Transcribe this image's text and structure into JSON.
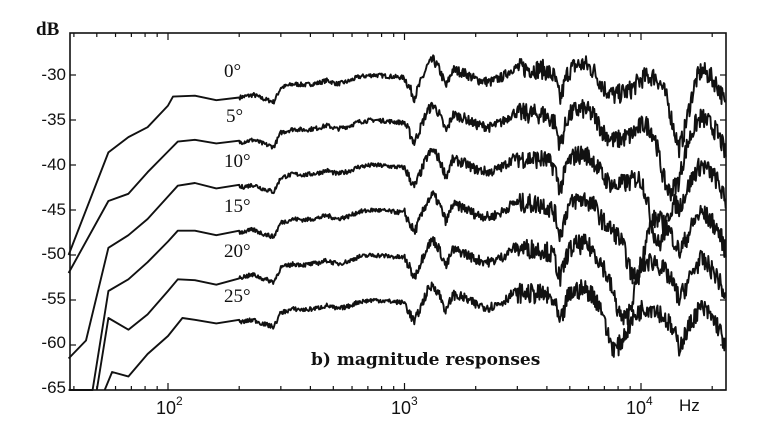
{
  "chart_data": {
    "type": "line",
    "title": "b) magnitude responses",
    "xlabel": "Hz",
    "ylabel": "dB",
    "xscale": "log",
    "xlim": [
      38,
      23000
    ],
    "ylim": [
      -65,
      -25
    ],
    "yticks": [
      -30,
      -35,
      -40,
      -45,
      -50,
      -55,
      -60,
      -65
    ],
    "xticks": [
      {
        "value": 100,
        "label": "10",
        "exp": "2"
      },
      {
        "value": 1000,
        "label": "10",
        "exp": "3"
      },
      {
        "value": 10000,
        "label": "10",
        "exp": "4"
      }
    ],
    "grid": false,
    "legend": "inline labels",
    "series": [
      {
        "name": "0°",
        "offset": 0,
        "low": [
          [
            38,
            -50.0
          ],
          [
            56,
            -38.6
          ],
          [
            68,
            -36.9
          ],
          [
            82,
            -35.8
          ],
          [
            100,
            -33.4
          ],
          [
            105,
            -32.4
          ],
          [
            130,
            -32.3
          ],
          [
            160,
            -32.8
          ],
          [
            200,
            -32.5
          ]
        ]
      },
      {
        "name": "5°",
        "offset": -5,
        "low": [
          [
            38,
            -52.0
          ],
          [
            56,
            -44.0
          ],
          [
            68,
            -43.2
          ],
          [
            82,
            -40.8
          ],
          [
            100,
            -38.5
          ],
          [
            110,
            -37.4
          ],
          [
            130,
            -37.2
          ],
          [
            160,
            -37.6
          ],
          [
            200,
            -37.3
          ]
        ]
      },
      {
        "name": "10°",
        "offset": -10,
        "low": [
          [
            38,
            -61.5
          ],
          [
            45,
            -59.5
          ],
          [
            56,
            -49.2
          ],
          [
            68,
            -47.8
          ],
          [
            82,
            -46.0
          ],
          [
            100,
            -43.5
          ],
          [
            110,
            -42.3
          ],
          [
            130,
            -42.0
          ],
          [
            160,
            -42.6
          ],
          [
            200,
            -42.2
          ]
        ]
      },
      {
        "name": "15°",
        "offset": -15,
        "low": [
          [
            38,
            -65.5
          ],
          [
            48,
            -65.0
          ],
          [
            56,
            -54.0
          ],
          [
            68,
            -52.7
          ],
          [
            82,
            -50.8
          ],
          [
            100,
            -48.5
          ],
          [
            110,
            -47.3
          ],
          [
            130,
            -47.3
          ],
          [
            160,
            -47.8
          ],
          [
            200,
            -47.3
          ]
        ]
      },
      {
        "name": "20°",
        "offset": -20,
        "low": [
          [
            50,
            -65.5
          ],
          [
            56,
            -57.0
          ],
          [
            68,
            -58.3
          ],
          [
            82,
            -56.6
          ],
          [
            100,
            -54.0
          ],
          [
            110,
            -52.7
          ],
          [
            130,
            -52.8
          ],
          [
            160,
            -53.3
          ],
          [
            200,
            -52.6
          ]
        ]
      },
      {
        "name": "25°",
        "offset": -25,
        "low": [
          [
            54,
            -65.5
          ],
          [
            58,
            -63.0
          ],
          [
            68,
            -63.5
          ],
          [
            82,
            -61.0
          ],
          [
            100,
            -59.0
          ],
          [
            115,
            -57.0
          ],
          [
            130,
            -57.2
          ],
          [
            160,
            -57.6
          ],
          [
            200,
            -57.2
          ]
        ]
      }
    ],
    "base_curve_0deg": [
      [
        200,
        -32.5
      ],
      [
        230,
        -32.2
      ],
      [
        250,
        -32.6
      ],
      [
        280,
        -33.0
      ],
      [
        300,
        -31.4
      ],
      [
        340,
        -31.0
      ],
      [
        380,
        -31.1
      ],
      [
        430,
        -30.9
      ],
      [
        470,
        -30.6
      ],
      [
        520,
        -31.0
      ],
      [
        580,
        -30.7
      ],
      [
        640,
        -30.2
      ],
      [
        740,
        -30.0
      ],
      [
        830,
        -30.1
      ],
      [
        900,
        -30.2
      ],
      [
        1000,
        -30.3
      ],
      [
        1100,
        -32.5
      ],
      [
        1250,
        -29.0
      ],
      [
        1320,
        -28.3
      ],
      [
        1400,
        -29.3
      ],
      [
        1500,
        -31.3
      ],
      [
        1600,
        -29.4
      ],
      [
        1800,
        -29.8
      ],
      [
        2000,
        -30.5
      ],
      [
        2300,
        -30.8
      ],
      [
        2600,
        -30.2
      ],
      [
        2900,
        -29.2
      ],
      [
        3400,
        -29.3
      ],
      [
        3900,
        -29.4
      ],
      [
        4300,
        -30.2
      ],
      [
        4550,
        -32.8
      ],
      [
        4900,
        -29.7
      ],
      [
        5300,
        -28.9
      ],
      [
        5800,
        -28.8
      ],
      [
        6300,
        -29.5
      ],
      [
        7000,
        -31.5
      ],
      [
        7700,
        -32.3
      ],
      [
        9000,
        -31.7
      ],
      [
        10200,
        -30.3
      ],
      [
        11500,
        -30.1
      ],
      [
        13000,
        -31.5
      ],
      [
        14000,
        -33.0
      ],
      [
        14500,
        -34.1
      ],
      [
        15500,
        -32.5
      ],
      [
        17000,
        -30.2
      ],
      [
        18000,
        -29.4
      ],
      [
        19500,
        -30.1
      ],
      [
        21000,
        -31.1
      ],
      [
        22000,
        -32.3
      ],
      [
        22800,
        -33.6
      ]
    ],
    "hf_notch_shift": {
      "description": "deep notch moves lower in frequency and deepens for larger angles",
      "notch_hz": [
        14500,
        13000,
        11800,
        9500,
        8500,
        7800
      ],
      "notch_depth_db": [
        -4,
        -6,
        -8,
        -6,
        -5,
        -3
      ]
    },
    "annotations": [
      "0°",
      "5°",
      "10°",
      "15°",
      "20°",
      "25°",
      "b) magnitude responses"
    ]
  },
  "labels": {
    "unit_y": "dB",
    "unit_x": "Hz",
    "caption": "b) magnitude responses",
    "curves": [
      "0°",
      "5°",
      "10°",
      "15°",
      "20°",
      "25°"
    ],
    "yticks": [
      "-30",
      "-35",
      "-40",
      "-45",
      "-50",
      "-55",
      "-60",
      "-65"
    ],
    "xticks": [
      {
        "base": "10",
        "exp": "2"
      },
      {
        "base": "10",
        "exp": "3"
      },
      {
        "base": "10",
        "exp": "4"
      }
    ]
  }
}
